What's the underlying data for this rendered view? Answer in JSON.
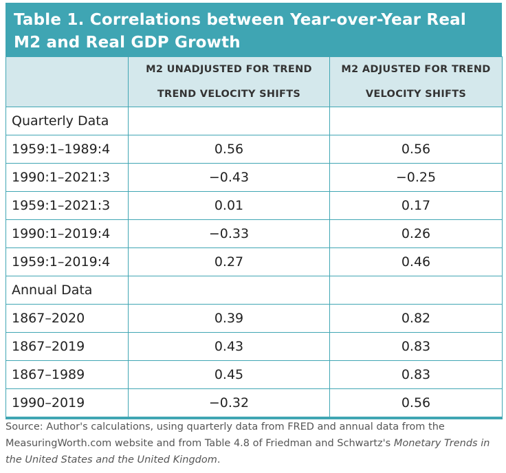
{
  "title": "Table 1. Correlations between Year-over-Year Real M2 and Real GDP Growth",
  "headers": {
    "col1": "",
    "col2": "M2 UNADJUSTED FOR TREND TREND VELOCITY SHIFTS",
    "col3": "M2 ADJUSTED FOR TREND VELOCITY SHIFTS"
  },
  "rows": [
    {
      "label": "Quarterly Data",
      "unadjusted": "",
      "adjusted": ""
    },
    {
      "label": "1959:1–1989:4",
      "unadjusted": "0.56",
      "adjusted": "0.56"
    },
    {
      "label": "1990:1–2021:3",
      "unadjusted": "−0.43",
      "adjusted": "−0.25"
    },
    {
      "label": "1959:1–2021:3",
      "unadjusted": "0.01",
      "adjusted": "0.17"
    },
    {
      "label": "1990:1–2019:4",
      "unadjusted": "−0.33",
      "adjusted": "0.26"
    },
    {
      "label": "1959:1–2019:4",
      "unadjusted": "0.27",
      "adjusted": "0.46"
    },
    {
      "label": "Annual Data",
      "unadjusted": "",
      "adjusted": ""
    },
    {
      "label": "1867–2020",
      "unadjusted": "0.39",
      "adjusted": "0.82"
    },
    {
      "label": "1867–2019",
      "unadjusted": "0.43",
      "adjusted": "0.83"
    },
    {
      "label": "1867–1989",
      "unadjusted": "0.45",
      "adjusted": "0.83"
    },
    {
      "label": "1990–2019",
      "unadjusted": "−0.32",
      "adjusted": "0.56"
    }
  ],
  "source": {
    "text": "Source: Author's calculations, using quarterly data from FRED and annual data from the MeasuringWorth.com website and from Table 4.8 of Friedman and Schwartz's ",
    "italic": "Monetary Trends in the United States and the United Kingdom",
    "end": "."
  }
}
